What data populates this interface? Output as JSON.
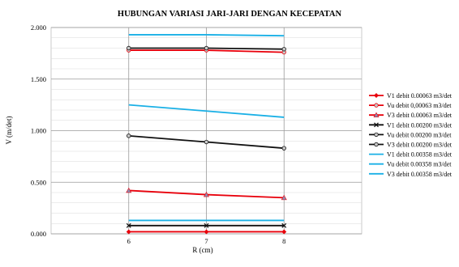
{
  "chart_data": {
    "type": "line",
    "title": "HUBUNGAN VARIASI JARI-JARI DENGAN KECEPATAN",
    "xlabel": "R (cm)",
    "ylabel": "V (m/det)",
    "x": [
      6,
      7,
      8
    ],
    "x_tick_labels": [
      "6",
      "7",
      "8"
    ],
    "xlim": [
      5,
      9
    ],
    "ylim": [
      0,
      2
    ],
    "y_ticks": [
      0,
      0.5,
      1.0,
      1.5,
      2.0
    ],
    "y_tick_labels": [
      "0.000",
      "0.500",
      "1.000",
      "1.500",
      "2.000"
    ],
    "grid": true,
    "legend_position": "right",
    "series": [
      {
        "name": "V1 debit 0.00063 m3/det",
        "color": "#e8000b",
        "marker": "diamond",
        "values": [
          0.02,
          0.02,
          0.02
        ]
      },
      {
        "name": "Vu debit 0,00063 m3/det",
        "color": "#e8000b",
        "marker": "circle",
        "values": [
          1.78,
          1.78,
          1.76
        ]
      },
      {
        "name": "V3 debit 0.00063 m3/det",
        "color": "#e8000b",
        "marker": "triangle",
        "values": [
          0.42,
          0.38,
          0.35
        ]
      },
      {
        "name": "V1 debit 0.00200 m3/det",
        "color": "#111111",
        "marker": "x",
        "values": [
          0.08,
          0.08,
          0.08
        ]
      },
      {
        "name": "Vu debit 0.00200 m3/det",
        "color": "#111111",
        "marker": "circle",
        "values": [
          1.8,
          1.8,
          1.79
        ]
      },
      {
        "name": "V3 debit 0.00200 m3/det",
        "color": "#111111",
        "marker": "circle",
        "values": [
          0.95,
          0.89,
          0.83
        ]
      },
      {
        "name": "V1 debit 0.00358 m3/det",
        "color": "#1ab0e6",
        "marker": "none",
        "values": [
          0.13,
          0.13,
          0.13
        ]
      },
      {
        "name": "Vu debit 0.00358 m3/det",
        "color": "#1ab0e6",
        "marker": "none",
        "values": [
          1.93,
          1.93,
          1.92
        ]
      },
      {
        "name": "V3 debit 0.00358 m3/det",
        "color": "#1ab0e6",
        "marker": "none",
        "values": [
          1.25,
          1.19,
          1.13
        ]
      }
    ]
  }
}
